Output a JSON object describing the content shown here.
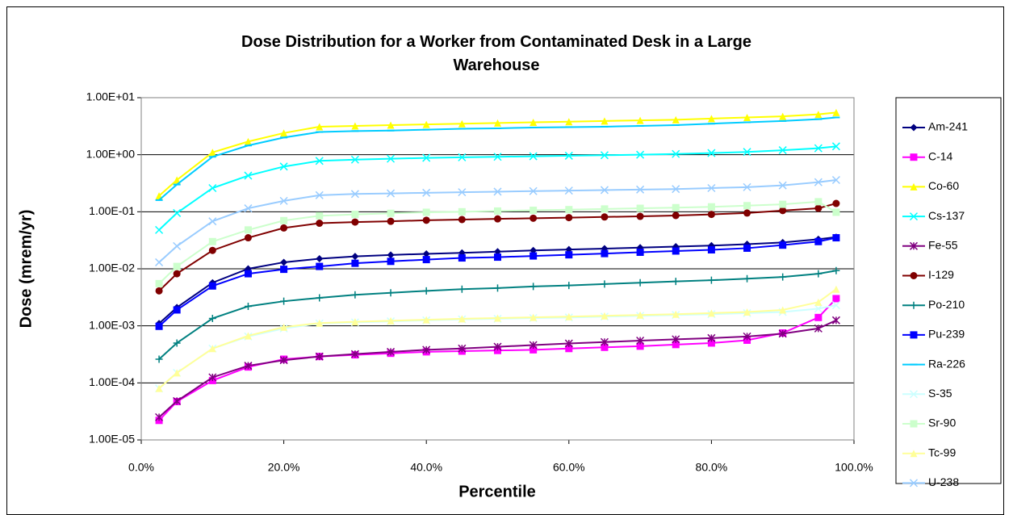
{
  "chart_data": {
    "type": "line",
    "title": "Dose Distribution for a Worker from Contaminated Desk in a Large Warehouse",
    "x_label": "Percentile",
    "y_label": "Dose (mrem/yr)",
    "yscale": "log",
    "grid": true,
    "legend": "right",
    "x": [
      2.5,
      5,
      10,
      15,
      20,
      25,
      30,
      35,
      40,
      45,
      50,
      55,
      60,
      65,
      70,
      75,
      80,
      85,
      90,
      95,
      97.5
    ],
    "xlim": [
      0,
      100
    ],
    "xticks": [
      {
        "value": 0,
        "label": "0.0%"
      },
      {
        "value": 20,
        "label": "20.0%"
      },
      {
        "value": 40,
        "label": "40.0%"
      },
      {
        "value": 60,
        "label": "60.0%"
      },
      {
        "value": 80,
        "label": "80.0%"
      },
      {
        "value": 100,
        "label": "100.0%"
      }
    ],
    "ylim": [
      1e-05,
      10
    ],
    "yticks": [
      {
        "value": 1e-05,
        "label": "1.00E-05"
      },
      {
        "value": 0.0001,
        "label": "1.00E-04"
      },
      {
        "value": 0.001,
        "label": "1.00E-03"
      },
      {
        "value": 0.01,
        "label": "1.00E-02"
      },
      {
        "value": 0.1,
        "label": "1.00E-01"
      },
      {
        "value": 1,
        "label": "1.00E+00"
      },
      {
        "value": 10,
        "label": "1.00E+01"
      }
    ],
    "series": [
      {
        "name": "Am-241",
        "color": "#000080",
        "marker": "diamond",
        "values": [
          0.0011,
          0.0021,
          0.0057,
          0.01,
          0.013,
          0.015,
          0.0165,
          0.0175,
          0.0183,
          0.019,
          0.02,
          0.021,
          0.0218,
          0.0226,
          0.0235,
          0.0245,
          0.0255,
          0.027,
          0.029,
          0.033,
          0.036
        ]
      },
      {
        "name": "C-14",
        "color": "#ff00ff",
        "marker": "square",
        "values": [
          2.2e-05,
          4.7e-05,
          0.00011,
          0.00019,
          0.00026,
          0.00029,
          0.00031,
          0.00033,
          0.00035,
          0.00036,
          0.00037,
          0.00038,
          0.0004,
          0.00042,
          0.00044,
          0.00047,
          0.0005,
          0.00056,
          0.00075,
          0.0014,
          0.003
        ]
      },
      {
        "name": "Co-60",
        "color": "#ffff00",
        "marker": "triangle",
        "values": [
          0.19,
          0.36,
          1.1,
          1.7,
          2.4,
          3.1,
          3.2,
          3.3,
          3.4,
          3.5,
          3.6,
          3.7,
          3.8,
          3.9,
          4.0,
          4.1,
          4.3,
          4.5,
          4.7,
          5.1,
          5.5
        ]
      },
      {
        "name": "Cs-137",
        "color": "#00ffff",
        "marker": "x",
        "values": [
          0.048,
          0.095,
          0.26,
          0.43,
          0.62,
          0.78,
          0.82,
          0.85,
          0.88,
          0.9,
          0.92,
          0.94,
          0.96,
          0.98,
          1.0,
          1.03,
          1.07,
          1.12,
          1.2,
          1.3,
          1.4
        ]
      },
      {
        "name": "Fe-55",
        "color": "#800080",
        "marker": "star",
        "values": [
          2.5e-05,
          4.8e-05,
          0.000125,
          0.0002,
          0.00025,
          0.00029,
          0.00032,
          0.00035,
          0.00038,
          0.0004,
          0.00043,
          0.00046,
          0.00049,
          0.00052,
          0.00055,
          0.00058,
          0.00061,
          0.00065,
          0.00073,
          0.0009,
          0.00125
        ]
      },
      {
        "name": "I-129",
        "color": "#800000",
        "marker": "circle",
        "values": [
          0.0041,
          0.0082,
          0.021,
          0.035,
          0.052,
          0.063,
          0.066,
          0.068,
          0.071,
          0.073,
          0.075,
          0.077,
          0.079,
          0.081,
          0.083,
          0.086,
          0.09,
          0.095,
          0.105,
          0.115,
          0.14
        ]
      },
      {
        "name": "Po-210",
        "color": "#008080",
        "marker": "plus",
        "values": [
          0.00026,
          0.0005,
          0.00135,
          0.0022,
          0.0027,
          0.0031,
          0.0035,
          0.0038,
          0.0041,
          0.0044,
          0.0046,
          0.0049,
          0.0051,
          0.0054,
          0.0057,
          0.006,
          0.0063,
          0.0067,
          0.0072,
          0.0082,
          0.0093
        ]
      },
      {
        "name": "Pu-239",
        "color": "#0000ff",
        "marker": "square",
        "values": [
          0.00098,
          0.0019,
          0.005,
          0.0082,
          0.0098,
          0.011,
          0.0125,
          0.0135,
          0.0145,
          0.0155,
          0.016,
          0.0168,
          0.0176,
          0.0185,
          0.0195,
          0.0205,
          0.0215,
          0.023,
          0.026,
          0.03,
          0.035
        ]
      },
      {
        "name": "Ra-226",
        "color": "#00ccff",
        "marker": "dash",
        "values": [
          0.16,
          0.3,
          0.92,
          1.45,
          2.0,
          2.5,
          2.6,
          2.65,
          2.75,
          2.85,
          2.9,
          3.0,
          3.05,
          3.1,
          3.2,
          3.3,
          3.5,
          3.7,
          3.9,
          4.2,
          4.5
        ]
      },
      {
        "name": "S-35",
        "color": "#ccffff",
        "marker": "x",
        "values": [
          8e-05,
          0.00015,
          0.0004,
          0.00065,
          0.0009,
          0.0011,
          0.00115,
          0.0012,
          0.00125,
          0.0013,
          0.00133,
          0.00137,
          0.0014,
          0.00145,
          0.0015,
          0.00155,
          0.0016,
          0.00167,
          0.00175,
          0.002,
          0.0023
        ]
      },
      {
        "name": "Sr-90",
        "color": "#ccffcc",
        "marker": "square",
        "values": [
          0.0055,
          0.011,
          0.03,
          0.048,
          0.07,
          0.085,
          0.09,
          0.094,
          0.098,
          0.1,
          0.103,
          0.106,
          0.109,
          0.112,
          0.115,
          0.118,
          0.122,
          0.128,
          0.135,
          0.15,
          0.098
        ]
      },
      {
        "name": "Tc-99",
        "color": "#ffff99",
        "marker": "triangle",
        "values": [
          8e-05,
          0.00015,
          0.0004,
          0.00067,
          0.00095,
          0.00112,
          0.00118,
          0.00123,
          0.00128,
          0.00133,
          0.00137,
          0.00141,
          0.00145,
          0.0015,
          0.00155,
          0.0016,
          0.00167,
          0.00175,
          0.0019,
          0.0026,
          0.0044
        ]
      },
      {
        "name": "U-238",
        "color": "#99ccff",
        "marker": "x",
        "values": [
          0.013,
          0.025,
          0.068,
          0.115,
          0.155,
          0.195,
          0.205,
          0.21,
          0.215,
          0.22,
          0.225,
          0.23,
          0.235,
          0.24,
          0.245,
          0.25,
          0.26,
          0.27,
          0.29,
          0.33,
          0.36
        ]
      }
    ]
  }
}
